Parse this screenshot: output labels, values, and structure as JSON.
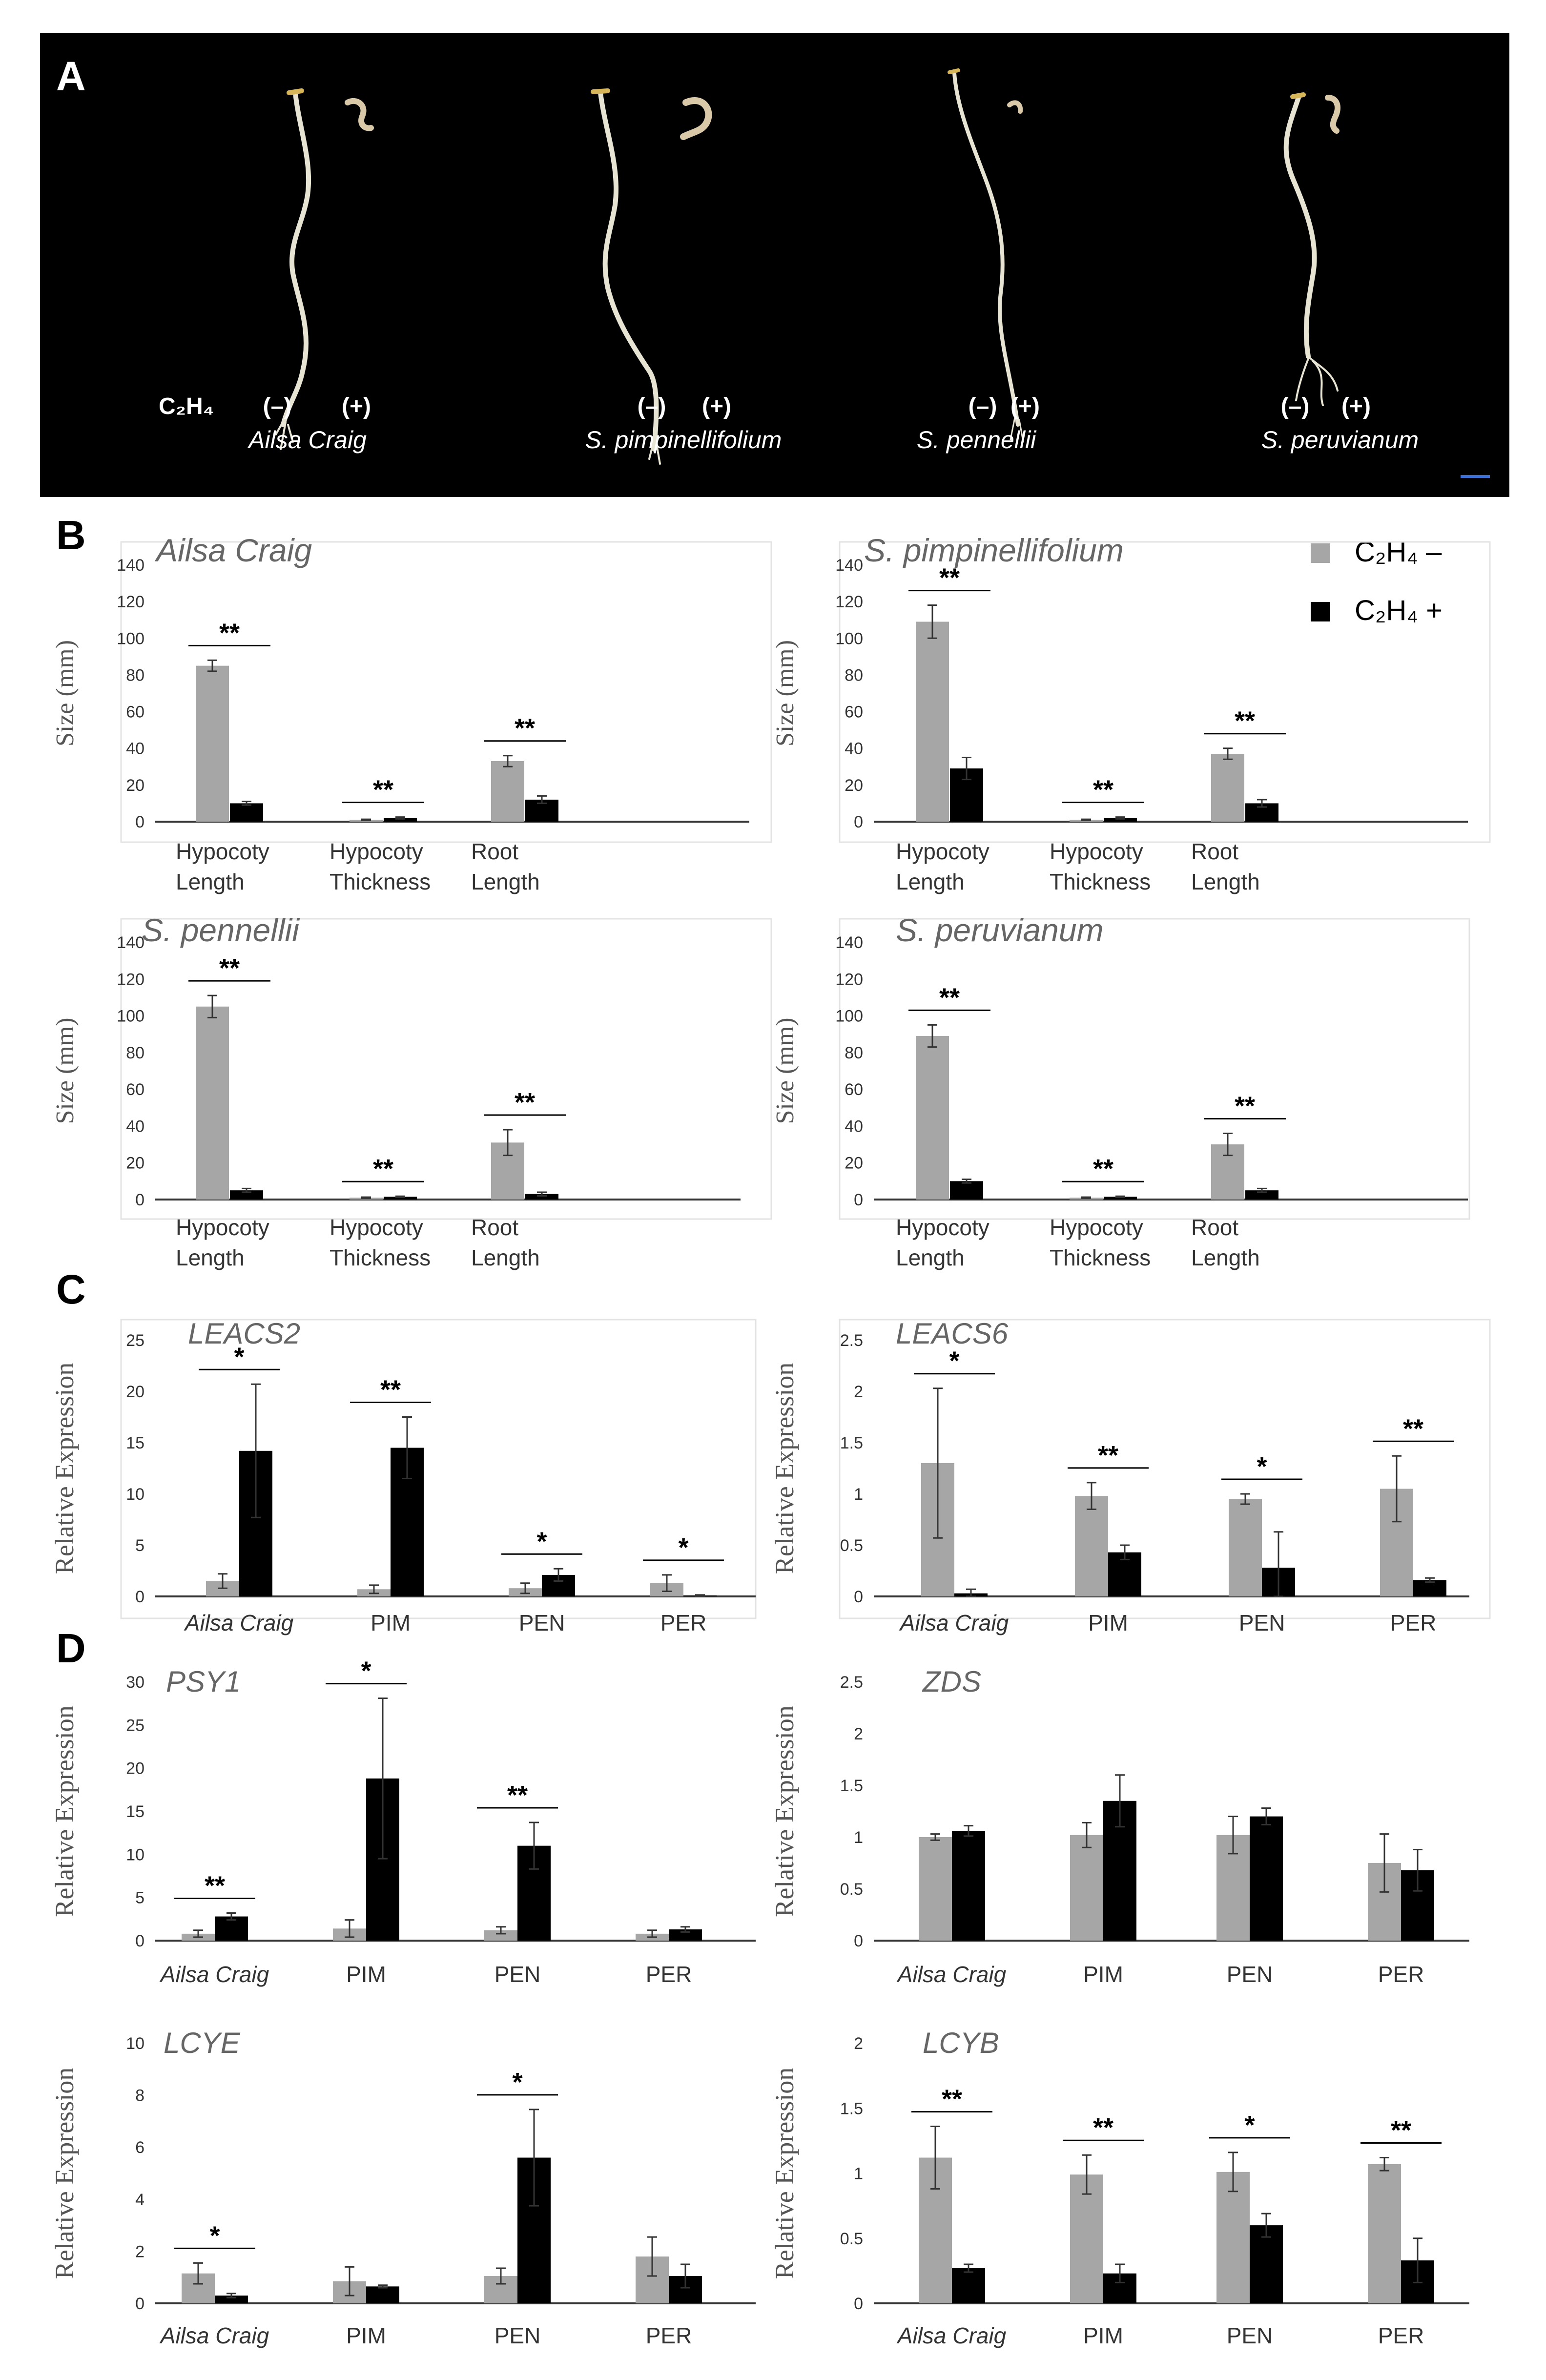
{
  "legend": {
    "minus_label": "C₂H₄ –",
    "plus_label": "C₂H₄ +",
    "minus_color": "#a6a6a6",
    "plus_color": "#000000"
  },
  "panel_a": {
    "letter": "A",
    "c2h4_label": "C₂H₄",
    "treatments": [
      "(–)",
      "(+)"
    ],
    "genotypes": [
      "Ailsa Craig",
      "S. pimpinellifolium",
      "S. pennellii",
      "S. peruvianum"
    ],
    "scale_bar_color": "#3b6fd6"
  },
  "chart_data": [
    {
      "panel": "B",
      "type": "bar",
      "title": "Ailsa Craig",
      "ylabel": "Size (mm)",
      "ylim": [
        0,
        140
      ],
      "yticks": [
        0,
        20,
        40,
        60,
        80,
        100,
        120,
        140
      ],
      "categories": [
        [
          "Hypocoty",
          "Length"
        ],
        [
          "Hypocoty",
          "Thickness"
        ],
        [
          "Root",
          "Length"
        ]
      ],
      "series": [
        {
          "name": "C2H4 –",
          "values": [
            85,
            1,
            33
          ],
          "errors": [
            3,
            0.3,
            3
          ]
        },
        {
          "name": "C2H4 +",
          "values": [
            10,
            2,
            12
          ],
          "errors": [
            1,
            0.5,
            2
          ]
        }
      ],
      "sig": [
        "**",
        "**",
        "**"
      ]
    },
    {
      "panel": "B",
      "type": "bar",
      "title": "S. pimpinellifolium",
      "ylabel": "Size (mm)",
      "ylim": [
        0,
        140
      ],
      "yticks": [
        0,
        20,
        40,
        60,
        80,
        100,
        120,
        140
      ],
      "categories": [
        [
          "Hypocoty",
          "Length"
        ],
        [
          "Hypocoty",
          "Thickness"
        ],
        [
          "Root",
          "Length"
        ]
      ],
      "series": [
        {
          "name": "C2H4 –",
          "values": [
            109,
            1,
            37
          ],
          "errors": [
            9,
            0.3,
            3
          ]
        },
        {
          "name": "C2H4 +",
          "values": [
            29,
            2,
            10
          ],
          "errors": [
            6,
            0.5,
            2
          ]
        }
      ],
      "sig": [
        "**",
        "**",
        "**"
      ]
    },
    {
      "panel": "B",
      "type": "bar",
      "title": "S. pennellii",
      "ylabel": "Size (mm)",
      "ylim": [
        0,
        140
      ],
      "yticks": [
        0,
        20,
        40,
        60,
        80,
        100,
        120,
        140
      ],
      "categories": [
        [
          "Hypocoty",
          "Length"
        ],
        [
          "Hypocoty",
          "Thickness"
        ],
        [
          "Root",
          "Length"
        ]
      ],
      "series": [
        {
          "name": "C2H4 –",
          "values": [
            105,
            1,
            31
          ],
          "errors": [
            6,
            0.3,
            7
          ]
        },
        {
          "name": "C2H4 +",
          "values": [
            5,
            1.5,
            3
          ],
          "errors": [
            1,
            0.3,
            1
          ]
        }
      ],
      "sig": [
        "**",
        "**",
        "**"
      ]
    },
    {
      "panel": "B",
      "type": "bar",
      "title": "S. peruvianum",
      "ylabel": "Size (mm)",
      "ylim": [
        0,
        140
      ],
      "yticks": [
        0,
        20,
        40,
        60,
        80,
        100,
        120,
        140
      ],
      "categories": [
        [
          "Hypocoty",
          "Length"
        ],
        [
          "Hypocoty",
          "Thickness"
        ],
        [
          "Root",
          "Length"
        ]
      ],
      "series": [
        {
          "name": "C2H4 –",
          "values": [
            89,
            1,
            30
          ],
          "errors": [
            6,
            0.3,
            6
          ]
        },
        {
          "name": "C2H4 +",
          "values": [
            10,
            1.5,
            5
          ],
          "errors": [
            1,
            0.3,
            1
          ]
        }
      ],
      "sig": [
        "**",
        "**",
        "**"
      ]
    },
    {
      "panel": "C",
      "type": "bar",
      "title": "LEACS2",
      "ylabel": "Relative Expression",
      "ylim": [
        0,
        25
      ],
      "yticks": [
        0,
        5,
        10,
        15,
        20,
        25
      ],
      "categories": [
        [
          "Ailsa Craig"
        ],
        [
          "PIM"
        ],
        [
          "PEN"
        ],
        [
          "PER"
        ]
      ],
      "italic_first": true,
      "series": [
        {
          "name": "C2H4 –",
          "values": [
            1.5,
            0.7,
            0.8,
            1.3
          ],
          "errors": [
            0.7,
            0.4,
            0.5,
            0.8
          ]
        },
        {
          "name": "C2H4 +",
          "values": [
            14.2,
            14.5,
            2.1,
            0.1
          ],
          "errors": [
            6.5,
            3,
            0.6,
            0.05
          ]
        }
      ],
      "sig": [
        "*",
        "**",
        "*",
        "*"
      ]
    },
    {
      "panel": "C",
      "type": "bar",
      "title": "LEACS6",
      "ylabel": "Relative Expression",
      "ylim": [
        0,
        2.5
      ],
      "yticks": [
        "0",
        "0.5",
        "1",
        "1.5",
        "2",
        "2.5"
      ],
      "categories": [
        [
          "Ailsa Craig"
        ],
        [
          "PIM"
        ],
        [
          "PEN"
        ],
        [
          "PER"
        ]
      ],
      "italic_first": true,
      "series": [
        {
          "name": "C2H4 –",
          "values": [
            1.3,
            0.98,
            0.95,
            1.05
          ],
          "errors": [
            0.73,
            0.13,
            0.05,
            0.32
          ]
        },
        {
          "name": "C2H4 +",
          "values": [
            0.03,
            0.43,
            0.28,
            0.16
          ],
          "errors": [
            0.04,
            0.07,
            0.35,
            0.02
          ]
        }
      ],
      "sig": [
        "*",
        "**",
        "*",
        "**"
      ]
    },
    {
      "panel": "D",
      "type": "bar",
      "title": "PSY1",
      "ylabel": "Relative Expression",
      "ylim": [
        0,
        30
      ],
      "yticks": [
        0,
        5,
        10,
        15,
        20,
        25,
        30
      ],
      "categories": [
        [
          "Ailsa Craig"
        ],
        [
          "PIM"
        ],
        [
          "PEN"
        ],
        [
          "PER"
        ]
      ],
      "italic_first": true,
      "series": [
        {
          "name": "C2H4 –",
          "values": [
            0.8,
            1.4,
            1.2,
            0.8
          ],
          "errors": [
            0.4,
            1,
            0.4,
            0.4
          ]
        },
        {
          "name": "C2H4 +",
          "values": [
            2.8,
            18.8,
            11,
            1.3
          ],
          "errors": [
            0.4,
            9.3,
            2.7,
            0.3
          ]
        }
      ],
      "sig": [
        "**",
        "*",
        "**",
        ""
      ]
    },
    {
      "panel": "D",
      "type": "bar",
      "title": "ZDS",
      "ylabel": "Relative Expression",
      "ylim": [
        0,
        2.5
      ],
      "yticks": [
        "0",
        "0.5",
        "1",
        "1.5",
        "2",
        "2.5"
      ],
      "categories": [
        [
          "Ailsa Craig"
        ],
        [
          "PIM"
        ],
        [
          "PEN"
        ],
        [
          "PER"
        ]
      ],
      "italic_first": true,
      "series": [
        {
          "name": "C2H4 –",
          "values": [
            1,
            1.02,
            1.02,
            0.75
          ],
          "errors": [
            0.03,
            0.12,
            0.18,
            0.28
          ]
        },
        {
          "name": "C2H4 +",
          "values": [
            1.06,
            1.35,
            1.2,
            0.68
          ],
          "errors": [
            0.05,
            0.25,
            0.08,
            0.2
          ]
        }
      ],
      "sig": [
        "",
        "",
        "",
        ""
      ]
    },
    {
      "panel": "D",
      "type": "bar",
      "title": "LCYE",
      "ylabel": "Relative Expression",
      "ylim": [
        0,
        10
      ],
      "yticks": [
        0,
        2,
        4,
        6,
        8,
        10
      ],
      "categories": [
        [
          "Ailsa Craig"
        ],
        [
          "PIM"
        ],
        [
          "PEN"
        ],
        [
          "PER"
        ]
      ],
      "italic_first": true,
      "series": [
        {
          "name": "C2H4 –",
          "values": [
            1.15,
            0.85,
            1.05,
            1.8
          ],
          "errors": [
            0.4,
            0.55,
            0.3,
            0.75
          ]
        },
        {
          "name": "C2H4 +",
          "values": [
            0.3,
            0.65,
            5.6,
            1.05
          ],
          "errors": [
            0.08,
            0.05,
            1.85,
            0.45
          ]
        }
      ],
      "sig": [
        "*",
        "",
        "*",
        ""
      ]
    },
    {
      "panel": "D",
      "type": "bar",
      "title": "LCYB",
      "ylabel": "Relative Expression",
      "ylim": [
        0,
        2
      ],
      "yticks": [
        "0",
        "0.5",
        "1",
        "1.5",
        "2"
      ],
      "categories": [
        [
          "Ailsa Craig"
        ],
        [
          "PIM"
        ],
        [
          "PEN"
        ],
        [
          "PER"
        ]
      ],
      "italic_first": true,
      "series": [
        {
          "name": "C2H4 –",
          "values": [
            1.12,
            0.99,
            1.01,
            1.07
          ],
          "errors": [
            0.24,
            0.15,
            0.15,
            0.05
          ]
        },
        {
          "name": "C2H4 +",
          "values": [
            0.27,
            0.23,
            0.6,
            0.33
          ],
          "errors": [
            0.03,
            0.07,
            0.09,
            0.17
          ]
        }
      ],
      "sig": [
        "**",
        "**",
        "*",
        "**"
      ]
    }
  ]
}
